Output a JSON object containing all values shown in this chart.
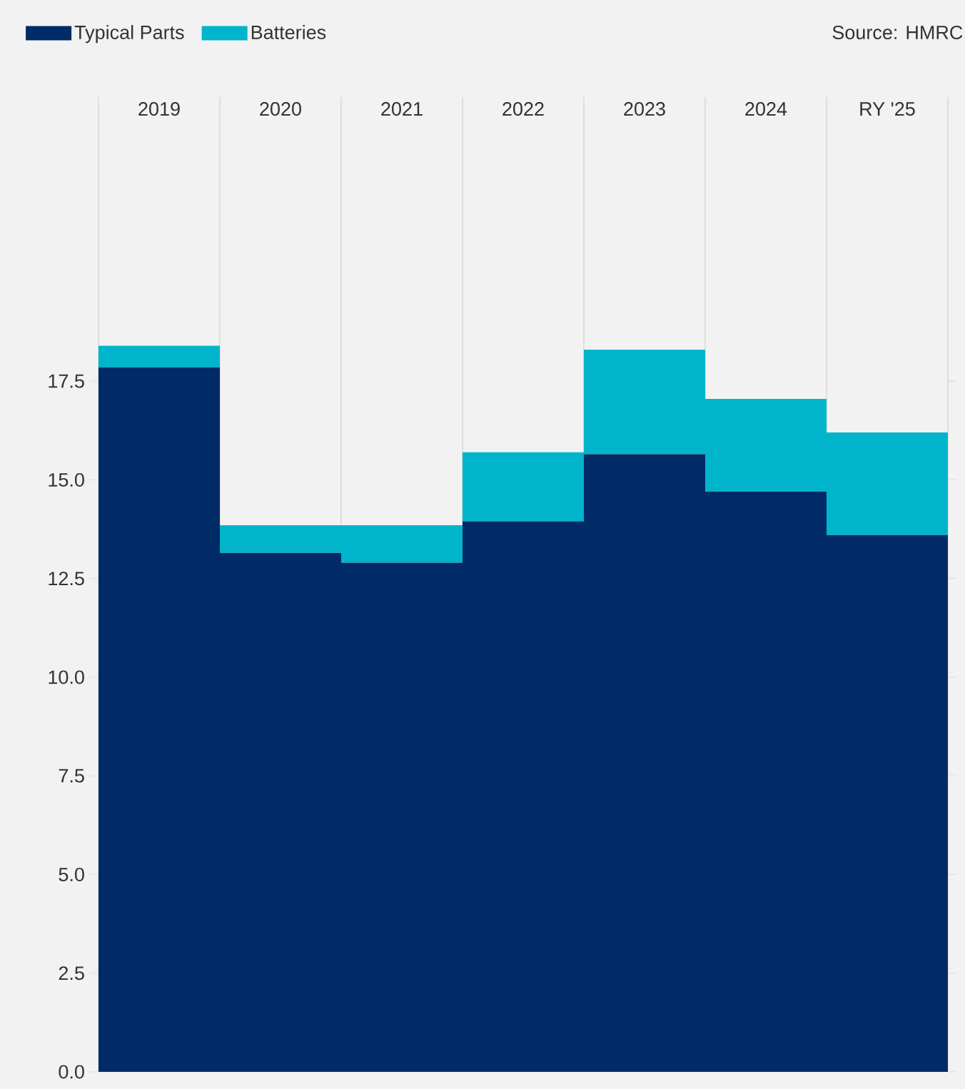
{
  "chart_data": {
    "type": "bar",
    "stacked": true,
    "categories": [
      "2019",
      "2020",
      "2021",
      "2022",
      "2023",
      "2024",
      "RY '25"
    ],
    "series": [
      {
        "name": "Typical Parts",
        "color": "#002b66",
        "values": [
          17.85,
          13.15,
          12.9,
          13.95,
          15.65,
          14.7,
          13.6
        ]
      },
      {
        "name": "Batteries",
        "color": "#00b4cc",
        "values": [
          0.55,
          0.7,
          0.95,
          1.75,
          2.65,
          2.35,
          2.6
        ]
      }
    ],
    "ylim": [
      0,
      24.7
    ],
    "yticks": [
      {
        "value": 0,
        "label": "0.0"
      },
      2.5,
      {
        "value": 5,
        "label": "5.0"
      },
      7.5,
      {
        "value": 10,
        "label": "10.0"
      },
      12.5,
      {
        "value": 15,
        "label": "15.0"
      },
      17.5
    ],
    "grid": "x",
    "legend": "top left",
    "annotations": [
      "Source: HMRC"
    ]
  }
}
